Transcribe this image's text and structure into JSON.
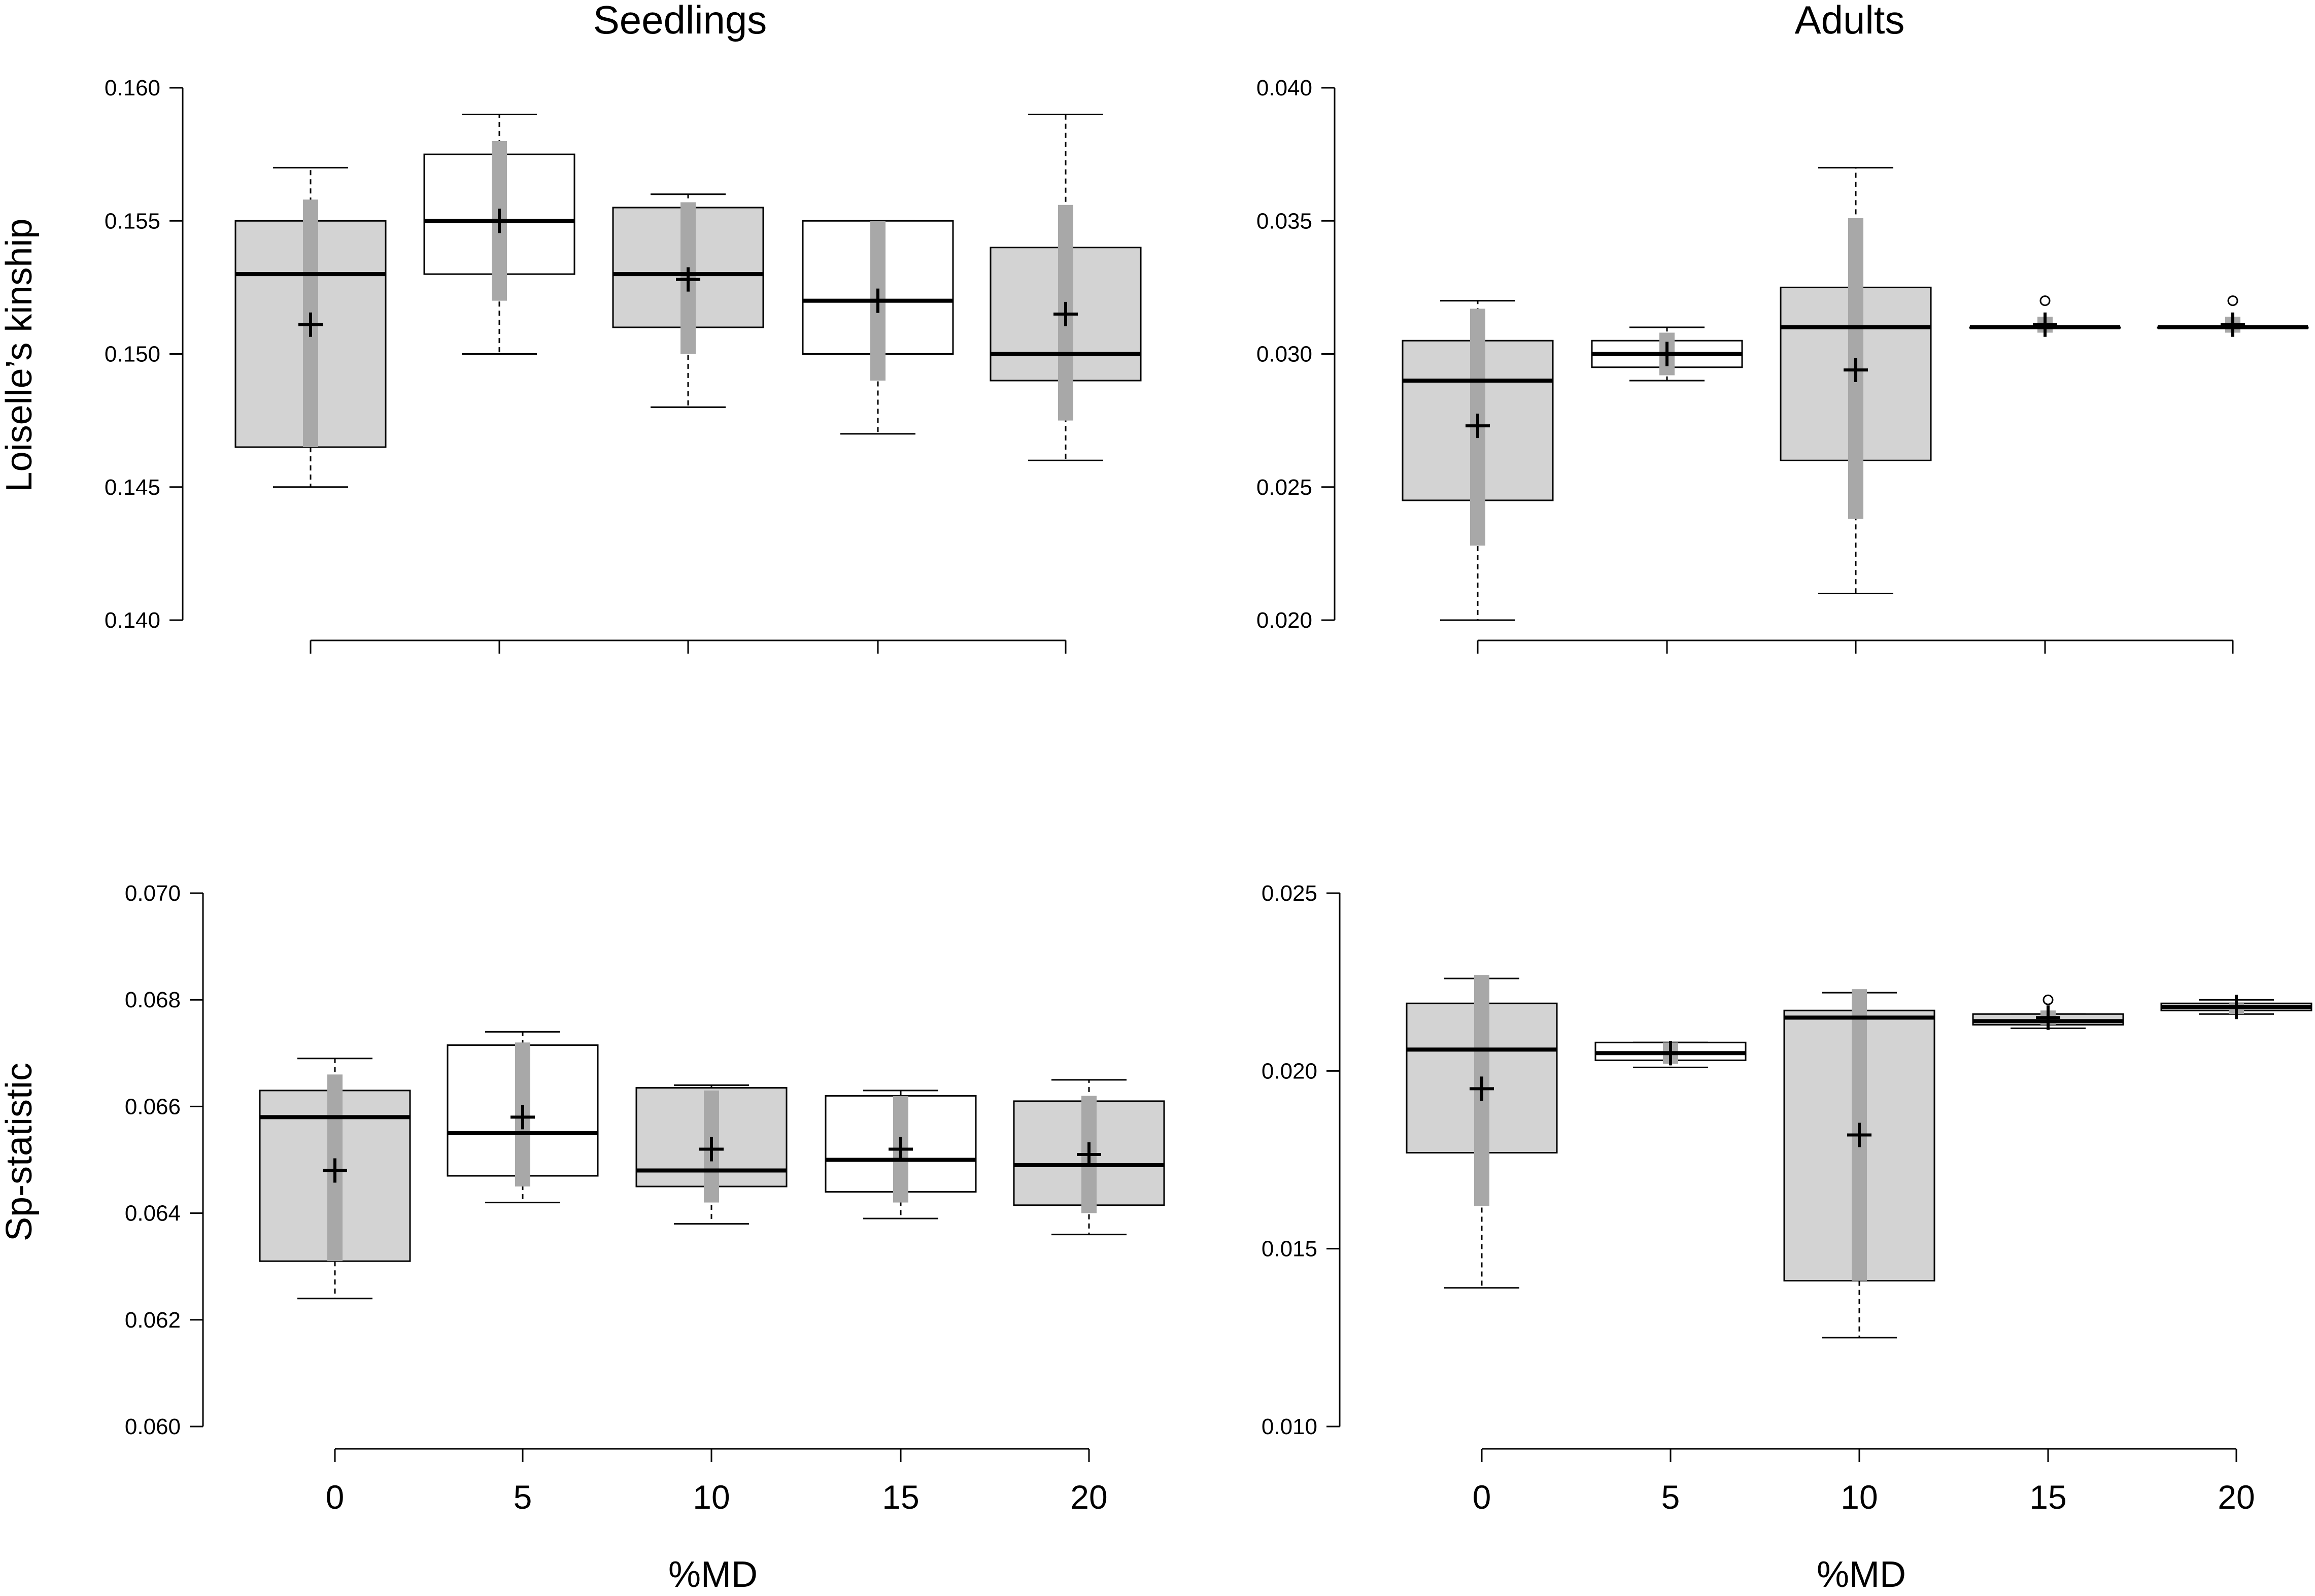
{
  "figure": {
    "column_titles": [
      "Seedlings",
      "Adults"
    ],
    "row_labels": [
      "Loiselle’s kinship",
      "Sp-statistic"
    ],
    "x_axis_label": "%MD"
  },
  "colors": {
    "box_shaded": "#d3d3d3",
    "box_open": "#ffffff",
    "error_bar": "#a8a8a8",
    "line": "#000000"
  },
  "chart_data": [
    {
      "type": "boxplot",
      "panel": "seedlings-kinship",
      "title": "Seedlings",
      "ylabel": "Loiselle’s kinship",
      "xlabel": "",
      "categories": [
        "0",
        "5",
        "10",
        "15",
        "20"
      ],
      "ylim": [
        0.14,
        0.16
      ],
      "yticks": [
        "0.140",
        "0.145",
        "0.150",
        "0.155",
        "0.160"
      ],
      "show_xtick_labels": false,
      "boxes": [
        {
          "category": "0",
          "shaded": true,
          "whisker_low": 0.145,
          "q1": 0.1465,
          "median": 0.153,
          "q3": 0.155,
          "whisker_high": 0.157,
          "mean": 0.1511,
          "sd_low": 0.1465,
          "sd_high": 0.1558,
          "outliers": []
        },
        {
          "category": "5",
          "shaded": false,
          "whisker_low": 0.15,
          "q1": 0.153,
          "median": 0.155,
          "q3": 0.1575,
          "whisker_high": 0.159,
          "mean": 0.155,
          "sd_low": 0.152,
          "sd_high": 0.158,
          "outliers": []
        },
        {
          "category": "10",
          "shaded": true,
          "whisker_low": 0.148,
          "q1": 0.151,
          "median": 0.153,
          "q3": 0.1555,
          "whisker_high": 0.156,
          "mean": 0.1528,
          "sd_low": 0.15,
          "sd_high": 0.1557,
          "outliers": []
        },
        {
          "category": "15",
          "shaded": false,
          "whisker_low": 0.147,
          "q1": 0.15,
          "median": 0.152,
          "q3": 0.155,
          "whisker_high": 0.155,
          "mean": 0.152,
          "sd_low": 0.149,
          "sd_high": 0.155,
          "outliers": []
        },
        {
          "category": "20",
          "shaded": true,
          "whisker_low": 0.146,
          "q1": 0.149,
          "median": 0.15,
          "q3": 0.154,
          "whisker_high": 0.159,
          "mean": 0.1515,
          "sd_low": 0.1475,
          "sd_high": 0.1556,
          "outliers": []
        }
      ]
    },
    {
      "type": "boxplot",
      "panel": "adults-kinship",
      "title": "Adults",
      "ylabel": "",
      "xlabel": "",
      "categories": [
        "0",
        "5",
        "10",
        "15",
        "20"
      ],
      "ylim": [
        0.02,
        0.04
      ],
      "yticks": [
        "0.020",
        "0.025",
        "0.030",
        "0.035",
        "0.040"
      ],
      "show_xtick_labels": false,
      "boxes": [
        {
          "category": "0",
          "shaded": true,
          "whisker_low": 0.02,
          "q1": 0.0245,
          "median": 0.029,
          "q3": 0.0305,
          "whisker_high": 0.032,
          "mean": 0.0273,
          "sd_low": 0.0228,
          "sd_high": 0.0317,
          "outliers": []
        },
        {
          "category": "5",
          "shaded": false,
          "whisker_low": 0.029,
          "q1": 0.0295,
          "median": 0.03,
          "q3": 0.0305,
          "whisker_high": 0.031,
          "mean": 0.03,
          "sd_low": 0.0292,
          "sd_high": 0.0308,
          "outliers": []
        },
        {
          "category": "10",
          "shaded": true,
          "whisker_low": 0.021,
          "q1": 0.026,
          "median": 0.031,
          "q3": 0.0325,
          "whisker_high": 0.037,
          "mean": 0.0294,
          "sd_low": 0.0238,
          "sd_high": 0.0351,
          "outliers": []
        },
        {
          "category": "15",
          "shaded": true,
          "whisker_low": 0.031,
          "q1": 0.031,
          "median": 0.031,
          "q3": 0.031,
          "whisker_high": 0.031,
          "mean": 0.0311,
          "sd_low": 0.0308,
          "sd_high": 0.0314,
          "outliers": [
            0.032
          ]
        },
        {
          "category": "20",
          "shaded": true,
          "whisker_low": 0.031,
          "q1": 0.031,
          "median": 0.031,
          "q3": 0.031,
          "whisker_high": 0.031,
          "mean": 0.0311,
          "sd_low": 0.0308,
          "sd_high": 0.0314,
          "outliers": [
            0.032
          ]
        }
      ]
    },
    {
      "type": "boxplot",
      "panel": "seedlings-sp",
      "title": "",
      "ylabel": "Sp-statistic",
      "xlabel": "%MD",
      "categories": [
        "0",
        "5",
        "10",
        "15",
        "20"
      ],
      "ylim": [
        0.06,
        0.07
      ],
      "yticks": [
        "0.060",
        "0.062",
        "0.064",
        "0.066",
        "0.068",
        "0.070"
      ],
      "show_xtick_labels": true,
      "boxes": [
        {
          "category": "0",
          "shaded": true,
          "whisker_low": 0.0624,
          "q1": 0.0631,
          "median": 0.0658,
          "q3": 0.0663,
          "whisker_high": 0.0669,
          "mean": 0.0648,
          "sd_low": 0.0631,
          "sd_high": 0.0666,
          "outliers": []
        },
        {
          "category": "5",
          "shaded": false,
          "whisker_low": 0.0642,
          "q1": 0.0647,
          "median": 0.0655,
          "q3": 0.06715,
          "whisker_high": 0.0674,
          "mean": 0.0658,
          "sd_low": 0.0645,
          "sd_high": 0.0672,
          "outliers": []
        },
        {
          "category": "10",
          "shaded": true,
          "whisker_low": 0.0638,
          "q1": 0.0645,
          "median": 0.0648,
          "q3": 0.06635,
          "whisker_high": 0.0664,
          "mean": 0.0652,
          "sd_low": 0.0642,
          "sd_high": 0.0663,
          "outliers": []
        },
        {
          "category": "15",
          "shaded": false,
          "whisker_low": 0.0639,
          "q1": 0.0644,
          "median": 0.065,
          "q3": 0.0662,
          "whisker_high": 0.0663,
          "mean": 0.0652,
          "sd_low": 0.0642,
          "sd_high": 0.0662,
          "outliers": []
        },
        {
          "category": "20",
          "shaded": true,
          "whisker_low": 0.0636,
          "q1": 0.06415,
          "median": 0.0649,
          "q3": 0.0661,
          "whisker_high": 0.0665,
          "mean": 0.0651,
          "sd_low": 0.064,
          "sd_high": 0.0662,
          "outliers": []
        }
      ]
    },
    {
      "type": "boxplot",
      "panel": "adults-sp",
      "title": "",
      "ylabel": "",
      "xlabel": "%MD",
      "categories": [
        "0",
        "5",
        "10",
        "15",
        "20"
      ],
      "ylim": [
        0.01,
        0.025
      ],
      "yticks": [
        "0.010",
        "0.015",
        "0.020",
        "0.025"
      ],
      "show_xtick_labels": true,
      "boxes": [
        {
          "category": "0",
          "shaded": true,
          "whisker_low": 0.0139,
          "q1": 0.0177,
          "median": 0.0206,
          "q3": 0.0219,
          "whisker_high": 0.0226,
          "mean": 0.0195,
          "sd_low": 0.0162,
          "sd_high": 0.0227,
          "outliers": []
        },
        {
          "category": "5",
          "shaded": false,
          "whisker_low": 0.0201,
          "q1": 0.0203,
          "median": 0.0205,
          "q3": 0.0208,
          "whisker_high": 0.0208,
          "mean": 0.0205,
          "sd_low": 0.0202,
          "sd_high": 0.0208,
          "outliers": []
        },
        {
          "category": "10",
          "shaded": true,
          "whisker_low": 0.0125,
          "q1": 0.0141,
          "median": 0.0215,
          "q3": 0.0217,
          "whisker_high": 0.0222,
          "mean": 0.0182,
          "sd_low": 0.0141,
          "sd_high": 0.0223,
          "outliers": []
        },
        {
          "category": "15",
          "shaded": true,
          "whisker_low": 0.0212,
          "q1": 0.0213,
          "median": 0.0214,
          "q3": 0.0216,
          "whisker_high": 0.0216,
          "mean": 0.0215,
          "sd_low": 0.0213,
          "sd_high": 0.0217,
          "outliers": [
            0.022
          ]
        },
        {
          "category": "20",
          "shaded": true,
          "whisker_low": 0.0216,
          "q1": 0.0217,
          "median": 0.0218,
          "q3": 0.0219,
          "whisker_high": 0.022,
          "mean": 0.0218,
          "sd_low": 0.0216,
          "sd_high": 0.0219,
          "outliers": []
        }
      ]
    }
  ]
}
